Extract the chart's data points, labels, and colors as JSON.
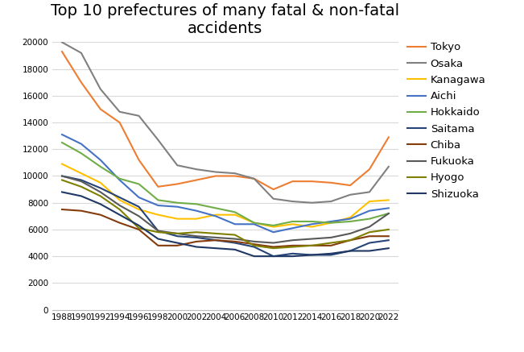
{
  "title": "Top 10 prefectures of many fatal & non-fatal\naccidents",
  "years": [
    1988,
    1990,
    1992,
    1994,
    1996,
    1998,
    2000,
    2002,
    2004,
    2006,
    2008,
    2010,
    2012,
    2014,
    2016,
    2018,
    2020,
    2022
  ],
  "series": {
    "Tokyo": {
      "color": "#ED7D31",
      "values": [
        19300,
        17000,
        15000,
        14000,
        11200,
        9200,
        9400,
        9700,
        10000,
        10000,
        9800,
        9000,
        9600,
        9600,
        9500,
        9300,
        10500,
        12900
      ]
    },
    "Osaka": {
      "color": "#808080",
      "values": [
        20000,
        19200,
        16500,
        14800,
        14500,
        12700,
        10800,
        10500,
        10300,
        10200,
        9800,
        8300,
        8100,
        8000,
        8100,
        8600,
        8800,
        10700
      ]
    },
    "Kanagawa": {
      "color": "#FFC000",
      "values": [
        10900,
        10200,
        9500,
        8200,
        7500,
        7100,
        6800,
        6800,
        7100,
        7100,
        6500,
        6200,
        6400,
        6200,
        6500,
        6900,
        8100,
        8200
      ]
    },
    "Aichi": {
      "color": "#4472C4",
      "values": [
        13100,
        12400,
        11200,
        9700,
        8400,
        7800,
        7700,
        7400,
        7000,
        6400,
        6400,
        5800,
        6100,
        6400,
        6600,
        6800,
        7400,
        7600
      ]
    },
    "Hokkaido": {
      "color": "#70AD47",
      "values": [
        12500,
        11700,
        10700,
        9800,
        9400,
        8200,
        8000,
        7900,
        7600,
        7300,
        6500,
        6300,
        6600,
        6600,
        6500,
        6600,
        6800,
        7200
      ]
    },
    "Saitama": {
      "color": "#264478",
      "values": [
        10000,
        9700,
        9100,
        8400,
        7700,
        5900,
        5500,
        5400,
        5200,
        5000,
        4700,
        4000,
        4200,
        4100,
        4100,
        4400,
        5000,
        5200
      ]
    },
    "Chiba": {
      "color": "#843C0C",
      "values": [
        7500,
        7400,
        7100,
        6500,
        6000,
        4800,
        4800,
        5100,
        5200,
        5100,
        4900,
        4700,
        4800,
        4800,
        4800,
        5200,
        5500,
        5500
      ]
    },
    "Fukuoka": {
      "color": "#595959",
      "values": [
        10000,
        9600,
        8800,
        7800,
        7000,
        5900,
        5700,
        5500,
        5400,
        5300,
        5100,
        5000,
        5200,
        5300,
        5400,
        5700,
        6200,
        7200
      ]
    },
    "Hyogo": {
      "color": "#808000",
      "values": [
        9700,
        9200,
        8500,
        7500,
        6100,
        5800,
        5700,
        5800,
        5700,
        5600,
        4800,
        4600,
        4700,
        4800,
        5000,
        5200,
        5800,
        6000
      ]
    },
    "Shizuoka": {
      "color": "#1F3864",
      "values": [
        8800,
        8500,
        7900,
        7100,
        6300,
        5300,
        5000,
        4700,
        4600,
        4500,
        4000,
        4000,
        4000,
        4100,
        4200,
        4400,
        4400,
        4600
      ]
    }
  },
  "xlim": [
    1987,
    2023
  ],
  "ylim": [
    0,
    20000
  ],
  "yticks": [
    0,
    2000,
    4000,
    6000,
    8000,
    10000,
    12000,
    14000,
    16000,
    18000,
    20000
  ],
  "xticks": [
    1988,
    1990,
    1992,
    1994,
    1996,
    1998,
    2000,
    2002,
    2004,
    2006,
    2008,
    2010,
    2012,
    2014,
    2016,
    2018,
    2020,
    2022
  ],
  "title_fontsize": 14,
  "legend_fontsize": 9.5,
  "tick_fontsize": 7.5,
  "background_color": "#FFFFFF"
}
